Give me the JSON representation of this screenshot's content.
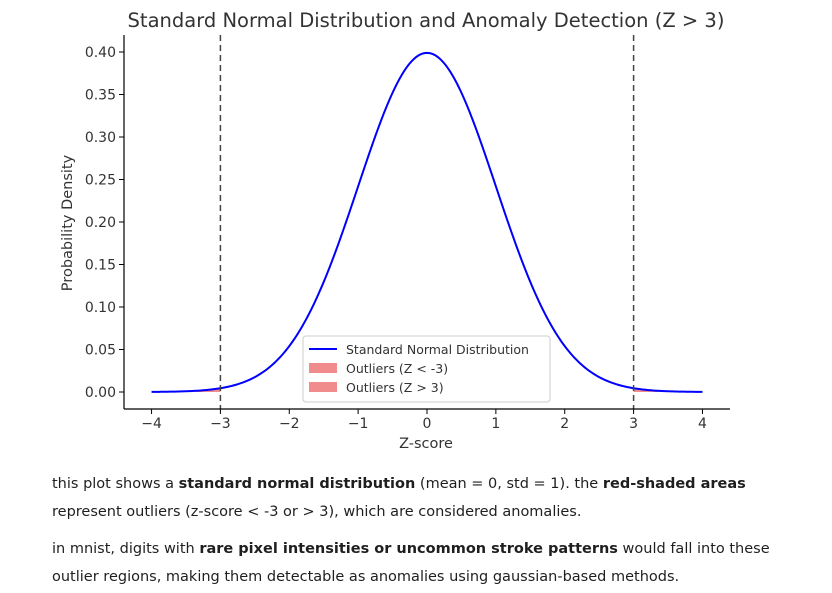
{
  "chart_data": {
    "type": "line",
    "title": "Standard Normal Distribution and Anomaly Detection (Z > 3)",
    "xlabel": "Z-score",
    "ylabel": "Probability Density",
    "xlim": [
      -4.4,
      4.4
    ],
    "ylim": [
      -0.02,
      0.42
    ],
    "x_ticks": [
      -4,
      -3,
      -2,
      -1,
      0,
      1,
      2,
      3,
      4
    ],
    "x_tick_labels": [
      "−4",
      "−3",
      "−2",
      "−1",
      "0",
      "1",
      "2",
      "3",
      "4"
    ],
    "y_ticks": [
      0.0,
      0.05,
      0.1,
      0.15,
      0.2,
      0.25,
      0.3,
      0.35,
      0.4
    ],
    "y_tick_labels": [
      "0.00",
      "0.05",
      "0.10",
      "0.15",
      "0.20",
      "0.25",
      "0.30",
      "0.35",
      "0.40"
    ],
    "grid": false,
    "legend_position": "lower-center",
    "series": [
      {
        "name": "Standard Normal Distribution",
        "kind": "line",
        "color": "#0000ff",
        "x_range": [
          -4,
          4
        ],
        "mean": 0,
        "std": 1
      },
      {
        "name": "Outliers (Z < -3)",
        "kind": "area",
        "color": "#f08080",
        "x_range": [
          -4,
          -3
        ]
      },
      {
        "name": "Outliers (Z > 3)",
        "kind": "area",
        "color": "#f08080",
        "x_range": [
          3,
          4
        ]
      }
    ],
    "vlines": [
      {
        "x": -3,
        "style": "dashed",
        "color": "#444444"
      },
      {
        "x": 3,
        "style": "dashed",
        "color": "#444444"
      }
    ]
  },
  "text": {
    "p1": {
      "t1": "this plot shows a ",
      "b1": "standard normal distribution",
      "t2": " (mean = 0, std = 1). the ",
      "b2": "red-shaded areas",
      "t3": " represent outliers (z-score < -3 or > 3), which are considered anomalies."
    },
    "p2": {
      "t1": "in mnist, digits with ",
      "b1": "rare pixel intensities or uncommon stroke patterns",
      "t2": " would fall into these outlier regions, making them detectable as anomalies using gaussian-based methods."
    }
  }
}
